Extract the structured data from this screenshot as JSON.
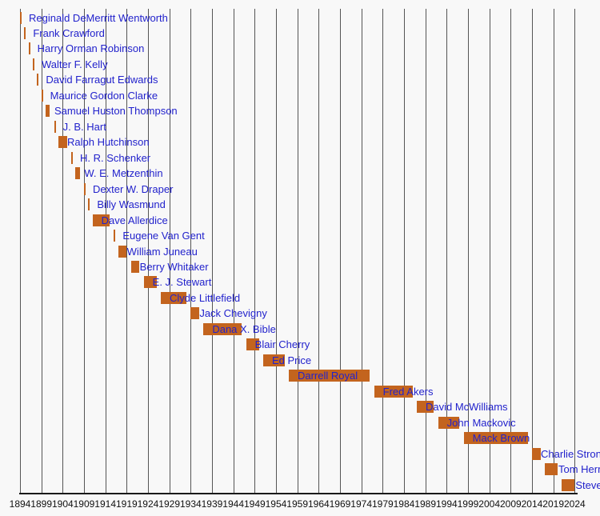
{
  "chart_data": {
    "type": "bar",
    "subtype": "gantt-timeline",
    "title": "",
    "description_visible_text_only": true,
    "x_axis": {
      "start": 1894,
      "end": 2024,
      "step": 5,
      "tick_labels": [
        "1894",
        "1899",
        "1904",
        "1909",
        "1914",
        "1919",
        "1924",
        "1929",
        "1934",
        "1939",
        "1944",
        "1949",
        "1954",
        "1959",
        "1964",
        "1969",
        "1974",
        "1979",
        "1984",
        "1989",
        "1994",
        "1999",
        "2004",
        "2009",
        "2014",
        "2019",
        "2024"
      ],
      "grid": true
    },
    "legend": "none",
    "series": [
      {
        "name": "Reginald DeMerritt Wentworth",
        "start": 1894,
        "end": 1894
      },
      {
        "name": "Frank Crawford",
        "start": 1895,
        "end": 1895
      },
      {
        "name": "Harry Orman Robinson",
        "start": 1896,
        "end": 1896
      },
      {
        "name": "Walter F. Kelly",
        "start": 1897,
        "end": 1897
      },
      {
        "name": "David Farragut Edwards",
        "start": 1898,
        "end": 1898
      },
      {
        "name": "Maurice Gordon Clarke",
        "start": 1899,
        "end": 1899
      },
      {
        "name": "Samuel Huston Thompson",
        "start": 1900,
        "end": 1901
      },
      {
        "name": "J. B. Hart",
        "start": 1902,
        "end": 1902
      },
      {
        "name": "Ralph Hutchinson",
        "start": 1903,
        "end": 1905
      },
      {
        "name": "H. R. Schenker",
        "start": 1906,
        "end": 1906
      },
      {
        "name": "W. E. Metzenthin",
        "start": 1907,
        "end": 1908
      },
      {
        "name": "Dexter W. Draper",
        "start": 1909,
        "end": 1909
      },
      {
        "name": "Billy Wasmund",
        "start": 1910,
        "end": 1910
      },
      {
        "name": "Dave Allerdice",
        "start": 1911,
        "end": 1915
      },
      {
        "name": "Eugene Van Gent",
        "start": 1916,
        "end": 1916
      },
      {
        "name": "William Juneau",
        "start": 1917,
        "end": 1919
      },
      {
        "name": "Berry Whitaker",
        "start": 1920,
        "end": 1922
      },
      {
        "name": "E. J. Stewart",
        "start": 1923,
        "end": 1926
      },
      {
        "name": "Clyde Littlefield",
        "start": 1927,
        "end": 1933
      },
      {
        "name": "Jack Chevigny",
        "start": 1934,
        "end": 1936
      },
      {
        "name": "Dana X. Bible",
        "start": 1937,
        "end": 1946
      },
      {
        "name": "Blair Cherry",
        "start": 1947,
        "end": 1950
      },
      {
        "name": "Ed Price",
        "start": 1951,
        "end": 1956
      },
      {
        "name": "Darrell Royal",
        "start": 1957,
        "end": 1976
      },
      {
        "name": "Fred Akers",
        "start": 1977,
        "end": 1986
      },
      {
        "name": "David McWilliams",
        "start": 1987,
        "end": 1991
      },
      {
        "name": "John Mackovic",
        "start": 1992,
        "end": 1997
      },
      {
        "name": "Mack Brown",
        "start": 1998,
        "end": 2013
      },
      {
        "name": "Charlie Strong",
        "start": 2014,
        "end": 2016
      },
      {
        "name": "Tom Herman",
        "start": 2017,
        "end": 2020,
        "label_offset": 17
      },
      {
        "name": "Steve Sarkisian",
        "start": 2021,
        "end": 2024,
        "label_offset": 17
      }
    ],
    "colors": {
      "bar": "#c3641e",
      "label_text": "#2222cc",
      "gridline": "#555555",
      "axis": "#1a1a1a",
      "tick_text": "#111111",
      "background": "#f8f8f8"
    }
  }
}
